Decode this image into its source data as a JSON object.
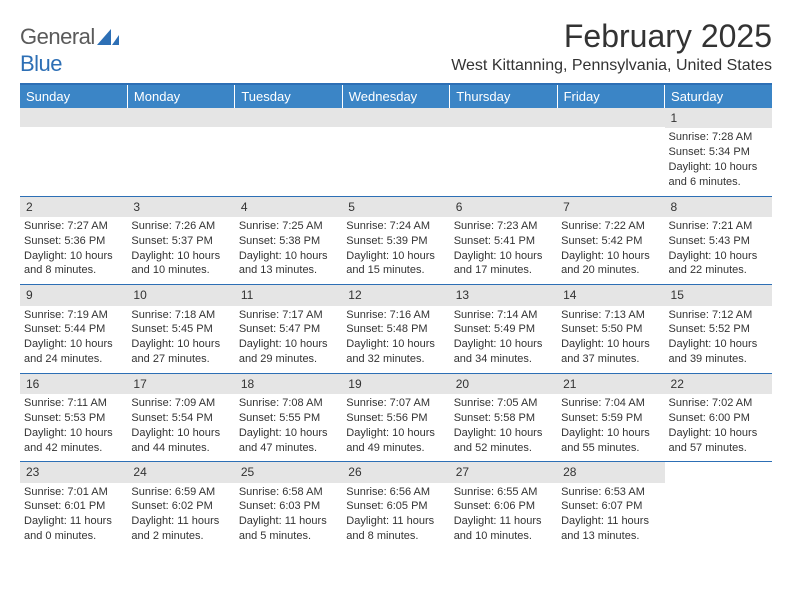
{
  "logo": {
    "text1": "General",
    "text2": "Blue"
  },
  "title": "February 2025",
  "location": "West Kittanning, Pennsylvania, United States",
  "colors": {
    "header_bg": "#3b85c6",
    "header_text": "#ffffff",
    "divider": "#2d6fb5",
    "daynum_bg": "#e5e5e5",
    "text": "#333333",
    "logo_gray": "#5a5a5a",
    "logo_blue": "#2d6fb5",
    "page_bg": "#ffffff"
  },
  "day_headers": [
    "Sunday",
    "Monday",
    "Tuesday",
    "Wednesday",
    "Thursday",
    "Friday",
    "Saturday"
  ],
  "weeks": [
    [
      {
        "blank": true
      },
      {
        "blank": true
      },
      {
        "blank": true
      },
      {
        "blank": true
      },
      {
        "blank": true
      },
      {
        "blank": true
      },
      {
        "day": "1",
        "sunrise": "Sunrise: 7:28 AM",
        "sunset": "Sunset: 5:34 PM",
        "daylight": "Daylight: 10 hours and 6 minutes."
      }
    ],
    [
      {
        "day": "2",
        "sunrise": "Sunrise: 7:27 AM",
        "sunset": "Sunset: 5:36 PM",
        "daylight": "Daylight: 10 hours and 8 minutes."
      },
      {
        "day": "3",
        "sunrise": "Sunrise: 7:26 AM",
        "sunset": "Sunset: 5:37 PM",
        "daylight": "Daylight: 10 hours and 10 minutes."
      },
      {
        "day": "4",
        "sunrise": "Sunrise: 7:25 AM",
        "sunset": "Sunset: 5:38 PM",
        "daylight": "Daylight: 10 hours and 13 minutes."
      },
      {
        "day": "5",
        "sunrise": "Sunrise: 7:24 AM",
        "sunset": "Sunset: 5:39 PM",
        "daylight": "Daylight: 10 hours and 15 minutes."
      },
      {
        "day": "6",
        "sunrise": "Sunrise: 7:23 AM",
        "sunset": "Sunset: 5:41 PM",
        "daylight": "Daylight: 10 hours and 17 minutes."
      },
      {
        "day": "7",
        "sunrise": "Sunrise: 7:22 AM",
        "sunset": "Sunset: 5:42 PM",
        "daylight": "Daylight: 10 hours and 20 minutes."
      },
      {
        "day": "8",
        "sunrise": "Sunrise: 7:21 AM",
        "sunset": "Sunset: 5:43 PM",
        "daylight": "Daylight: 10 hours and 22 minutes."
      }
    ],
    [
      {
        "day": "9",
        "sunrise": "Sunrise: 7:19 AM",
        "sunset": "Sunset: 5:44 PM",
        "daylight": "Daylight: 10 hours and 24 minutes."
      },
      {
        "day": "10",
        "sunrise": "Sunrise: 7:18 AM",
        "sunset": "Sunset: 5:45 PM",
        "daylight": "Daylight: 10 hours and 27 minutes."
      },
      {
        "day": "11",
        "sunrise": "Sunrise: 7:17 AM",
        "sunset": "Sunset: 5:47 PM",
        "daylight": "Daylight: 10 hours and 29 minutes."
      },
      {
        "day": "12",
        "sunrise": "Sunrise: 7:16 AM",
        "sunset": "Sunset: 5:48 PM",
        "daylight": "Daylight: 10 hours and 32 minutes."
      },
      {
        "day": "13",
        "sunrise": "Sunrise: 7:14 AM",
        "sunset": "Sunset: 5:49 PM",
        "daylight": "Daylight: 10 hours and 34 minutes."
      },
      {
        "day": "14",
        "sunrise": "Sunrise: 7:13 AM",
        "sunset": "Sunset: 5:50 PM",
        "daylight": "Daylight: 10 hours and 37 minutes."
      },
      {
        "day": "15",
        "sunrise": "Sunrise: 7:12 AM",
        "sunset": "Sunset: 5:52 PM",
        "daylight": "Daylight: 10 hours and 39 minutes."
      }
    ],
    [
      {
        "day": "16",
        "sunrise": "Sunrise: 7:11 AM",
        "sunset": "Sunset: 5:53 PM",
        "daylight": "Daylight: 10 hours and 42 minutes."
      },
      {
        "day": "17",
        "sunrise": "Sunrise: 7:09 AM",
        "sunset": "Sunset: 5:54 PM",
        "daylight": "Daylight: 10 hours and 44 minutes."
      },
      {
        "day": "18",
        "sunrise": "Sunrise: 7:08 AM",
        "sunset": "Sunset: 5:55 PM",
        "daylight": "Daylight: 10 hours and 47 minutes."
      },
      {
        "day": "19",
        "sunrise": "Sunrise: 7:07 AM",
        "sunset": "Sunset: 5:56 PM",
        "daylight": "Daylight: 10 hours and 49 minutes."
      },
      {
        "day": "20",
        "sunrise": "Sunrise: 7:05 AM",
        "sunset": "Sunset: 5:58 PM",
        "daylight": "Daylight: 10 hours and 52 minutes."
      },
      {
        "day": "21",
        "sunrise": "Sunrise: 7:04 AM",
        "sunset": "Sunset: 5:59 PM",
        "daylight": "Daylight: 10 hours and 55 minutes."
      },
      {
        "day": "22",
        "sunrise": "Sunrise: 7:02 AM",
        "sunset": "Sunset: 6:00 PM",
        "daylight": "Daylight: 10 hours and 57 minutes."
      }
    ],
    [
      {
        "day": "23",
        "sunrise": "Sunrise: 7:01 AM",
        "sunset": "Sunset: 6:01 PM",
        "daylight": "Daylight: 11 hours and 0 minutes."
      },
      {
        "day": "24",
        "sunrise": "Sunrise: 6:59 AM",
        "sunset": "Sunset: 6:02 PM",
        "daylight": "Daylight: 11 hours and 2 minutes."
      },
      {
        "day": "25",
        "sunrise": "Sunrise: 6:58 AM",
        "sunset": "Sunset: 6:03 PM",
        "daylight": "Daylight: 11 hours and 5 minutes."
      },
      {
        "day": "26",
        "sunrise": "Sunrise: 6:56 AM",
        "sunset": "Sunset: 6:05 PM",
        "daylight": "Daylight: 11 hours and 8 minutes."
      },
      {
        "day": "27",
        "sunrise": "Sunrise: 6:55 AM",
        "sunset": "Sunset: 6:06 PM",
        "daylight": "Daylight: 11 hours and 10 minutes."
      },
      {
        "day": "28",
        "sunrise": "Sunrise: 6:53 AM",
        "sunset": "Sunset: 6:07 PM",
        "daylight": "Daylight: 11 hours and 13 minutes."
      },
      {
        "blank": true,
        "nobar": true
      }
    ]
  ]
}
